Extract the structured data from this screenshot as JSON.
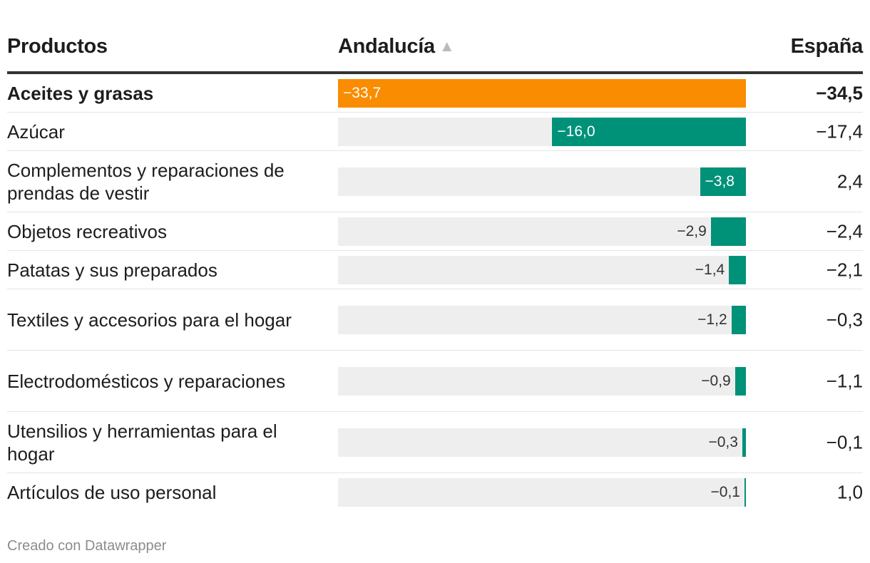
{
  "chart_data": {
    "type": "table",
    "columns": {
      "product": "Productos",
      "andalucia": "Andalucía",
      "espana": "España"
    },
    "sort_indicator": "▲",
    "highlight_color": "#f98c00",
    "bar_color": "#009179",
    "track_color": "#eeeeee",
    "max_abs": 33.7,
    "rows": [
      {
        "product": "Aceites y grasas",
        "andalucia": -33.7,
        "andalucia_label": "−33,7",
        "espana_label": "−34,5",
        "bold": true,
        "highlight": true
      },
      {
        "product": "Azúcar",
        "andalucia": -16.0,
        "andalucia_label": "−16,0",
        "espana_label": "−17,4"
      },
      {
        "product": "Complementos y reparaciones de prendas de vestir",
        "andalucia": -3.8,
        "andalucia_label": "−3,8",
        "espana_label": "2,4"
      },
      {
        "product": "Objetos recreativos",
        "andalucia": -2.9,
        "andalucia_label": "−2,9",
        "espana_label": "−2,4"
      },
      {
        "product": "Patatas y sus preparados",
        "andalucia": -1.4,
        "andalucia_label": "−1,4",
        "espana_label": "−2,1"
      },
      {
        "product": "Textiles y accesorios para el hogar",
        "andalucia": -1.2,
        "andalucia_label": "−1,2",
        "espana_label": "−0,3"
      },
      {
        "product": "Electrodomésticos y reparaciones",
        "andalucia": -0.9,
        "andalucia_label": "−0,9",
        "espana_label": "−1,1"
      },
      {
        "product": "Utensilios y herramientas para el hogar",
        "andalucia": -0.3,
        "andalucia_label": "−0,3",
        "espana_label": "−0,1"
      },
      {
        "product": "Artículos de uso personal",
        "andalucia": -0.1,
        "andalucia_label": "−0,1",
        "espana_label": "1,0"
      }
    ]
  },
  "footer": {
    "credit": "Creado con Datawrapper"
  }
}
